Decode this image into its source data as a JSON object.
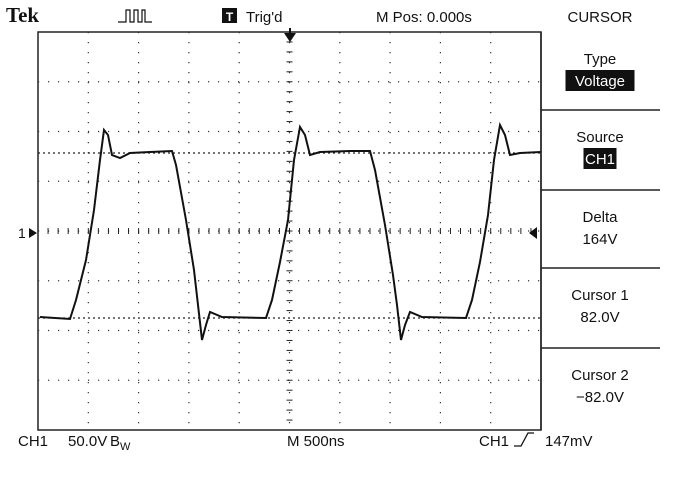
{
  "header": {
    "brand": "Tek",
    "trigger_icon": "T",
    "trigger_status": "Trig'd",
    "position": "M Pos: 0.000s",
    "menu_title": "CURSOR"
  },
  "menu": [
    {
      "label": "Type",
      "value": "Voltage",
      "selected": true
    },
    {
      "label": "Source",
      "value": "CH1",
      "selected": true
    },
    {
      "label": "Delta",
      "value": "164V",
      "selected": false
    },
    {
      "label": "Cursor 1",
      "value": "82.0V",
      "selected": false
    },
    {
      "label": "Cursor 2",
      "value": "−82.0V",
      "selected": false
    }
  ],
  "channel_marker": "1",
  "footer": {
    "channel": "CH1",
    "scale": "50.0V",
    "bandwidth": "B",
    "bandwidth_sub": "W",
    "timebase": "M 500ns",
    "trigger_source": "CH1",
    "trigger_level": "147mV"
  }
}
